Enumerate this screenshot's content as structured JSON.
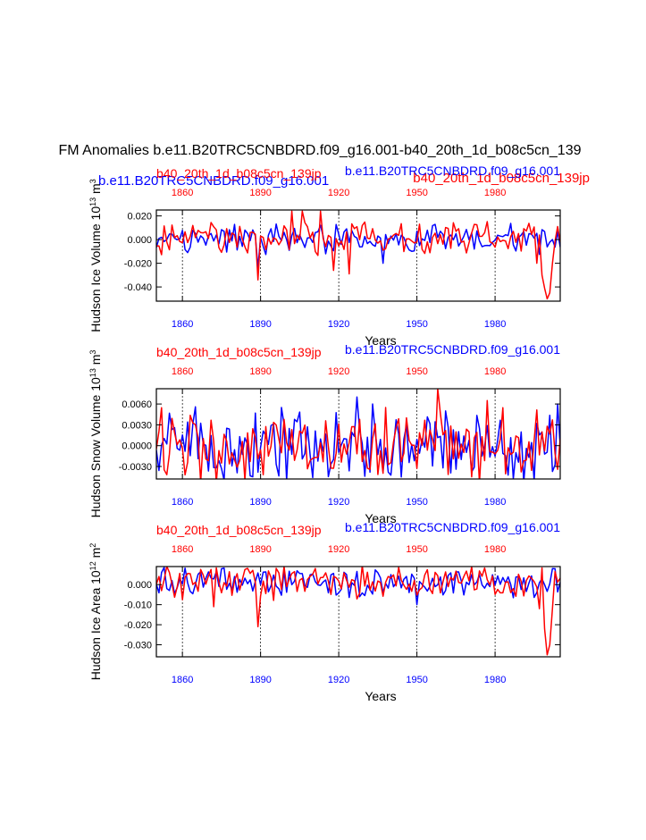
{
  "figure": {
    "main_title": "FM Anomalies b.e11.B20TRC5CNBDRD.f09_g16.001-b40_20th_1d_b08c5cn_139",
    "top_blue_title": "b.e11.B20TRC5CNBDRD.f09_g16.001",
    "top_red_title": "b40_20th_1d_b08c5cn_139jp",
    "colors": {
      "case_a": "#0000ff",
      "case_b": "#ff0000",
      "axis": "#000000",
      "grid": "#000000"
    }
  },
  "chart_data": [
    {
      "type": "line",
      "id": "ice-volume",
      "ylabel": "Hudson Ice Volume 10^13 m^3",
      "ylabel_main": "Hudson Ice Volume 10",
      "ylabel_exp1": "13",
      "ylabel_unit": " m",
      "ylabel_exp2": "3",
      "xlabel": "Years",
      "top_left_label": "b40_20th_1d_b08c5cn_139jp",
      "top_right_label": "b.e11.B20TRC5CNBDRD.f09_g16.001",
      "xlim": [
        1850,
        2005
      ],
      "ylim": [
        -0.052,
        0.025
      ],
      "yticks": [
        -0.04,
        -0.02,
        0.0,
        0.02
      ],
      "ytick_labels": [
        "-0.040",
        "-0.020",
        "0.000",
        "0.020"
      ],
      "xticks": [
        1860,
        1890,
        1920,
        1950,
        1980
      ],
      "xtick_labels": [
        "1860",
        "1890",
        "1920",
        "1950",
        "1980"
      ],
      "top_xtick_labels": [
        "1860",
        "1890",
        "1920",
        "1950",
        "1980"
      ],
      "seed": 11,
      "series": [
        {
          "name": "b.e11.B20TRC5CNBDRD.f09_g16.001",
          "color": "#0000ff",
          "amp": 0.0105,
          "mean": 0.0,
          "spikes": [
            [
              1889,
              -0.024
            ],
            [
              1937,
              -0.02
            ]
          ]
        },
        {
          "name": "b40_20th_1d_b08c5cn_139jp",
          "color": "#ff0000",
          "amp": 0.012,
          "mean": 0.002,
          "spikes": [
            [
              1889,
              -0.034
            ],
            [
              1902,
              0.024
            ],
            [
              1906,
              0.024
            ],
            [
              1913,
              0.024
            ],
            [
              1918,
              -0.026
            ],
            [
              1924,
              -0.029
            ],
            [
              1996,
              -0.02
            ],
            [
              1998,
              -0.03
            ],
            [
              1999,
              -0.041
            ],
            [
              2000,
              -0.05
            ],
            [
              2001,
              -0.045
            ],
            [
              2002,
              -0.02
            ]
          ]
        }
      ]
    },
    {
      "type": "line",
      "id": "snow-volume",
      "ylabel": "Hudson Snow Volume 10^13 m^3",
      "ylabel_main": "Hudson Snow Volume 10",
      "ylabel_exp1": "13",
      "ylabel_unit": " m",
      "ylabel_exp2": "3",
      "xlabel": "Years",
      "top_left_label": "b40_20th_1d_b08c5cn_139jp",
      "top_right_label": "b.e11.B20TRC5CNBDRD.f09_g16.001",
      "xlim": [
        1850,
        2005
      ],
      "ylim": [
        -0.0048,
        0.0082
      ],
      "yticks": [
        -0.003,
        0.0,
        0.003,
        0.006
      ],
      "ytick_labels": [
        "-0.0030",
        "0.0000",
        "0.0030",
        "0.0060"
      ],
      "xticks": [
        1860,
        1890,
        1920,
        1950,
        1980
      ],
      "xtick_labels": [
        "1860",
        "1890",
        "1920",
        "1950",
        "1980"
      ],
      "top_xtick_labels": [
        "1860",
        "1890",
        "1920",
        "1950",
        "1980"
      ],
      "seed": 23,
      "series": [
        {
          "name": "b.e11.B20TRC5CNBDRD.f09_g16.001",
          "color": "#0000ff",
          "amp": 0.0045,
          "mean": 0.0,
          "spikes": [
            [
              1927,
              0.007
            ],
            [
              1933,
              0.006
            ],
            [
              1898,
              0.0055
            ],
            [
              1944,
              -0.0045
            ],
            [
              2004,
              0.006
            ]
          ]
        },
        {
          "name": "b40_20th_1d_b08c5cn_139jp",
          "color": "#ff0000",
          "amp": 0.0042,
          "mean": 0.0,
          "spikes": [
            [
              1958,
              0.0082
            ],
            [
              1977,
              0.0065
            ],
            [
              1938,
              0.0055
            ]
          ]
        }
      ]
    },
    {
      "type": "line",
      "id": "ice-area",
      "ylabel": "Hudson Ice Area 10^12 m^2",
      "ylabel_main": "Hudson Ice Area 10",
      "ylabel_exp1": "12",
      "ylabel_unit": " m",
      "ylabel_exp2": "2",
      "xlabel": "Years",
      "top_left_label": "b40_20th_1d_b08c5cn_139jp",
      "top_right_label": "b.e11.B20TRC5CNBDRD.f09_g16.001",
      "xlim": [
        1850,
        2005
      ],
      "ylim": [
        -0.036,
        0.009
      ],
      "yticks": [
        -0.03,
        -0.02,
        -0.01,
        0.0
      ],
      "ytick_labels": [
        "-0.030",
        "-0.020",
        "-0.010",
        "0.000"
      ],
      "xticks": [
        1860,
        1890,
        1920,
        1950,
        1980
      ],
      "xtick_labels": [
        "1860",
        "1890",
        "1920",
        "1950",
        "1980"
      ],
      "top_xtick_labels": [
        "1860",
        "1890",
        "1920",
        "1950",
        "1980"
      ],
      "seed": 37,
      "series": [
        {
          "name": "b.e11.B20TRC5CNBDRD.f09_g16.001",
          "color": "#0000ff",
          "amp": 0.006,
          "mean": 0.001,
          "spikes": [
            [
              1950,
              -0.01
            ]
          ]
        },
        {
          "name": "b40_20th_1d_b08c5cn_139jp",
          "color": "#ff0000",
          "amp": 0.007,
          "mean": 0.001,
          "spikes": [
            [
              1889,
              -0.021
            ],
            [
              1872,
              -0.011
            ],
            [
              1911,
              0.008
            ],
            [
              1997,
              -0.012
            ],
            [
              1999,
              -0.022
            ],
            [
              2000,
              -0.035
            ],
            [
              2001,
              -0.03
            ],
            [
              2002,
              -0.012
            ]
          ]
        }
      ]
    }
  ]
}
